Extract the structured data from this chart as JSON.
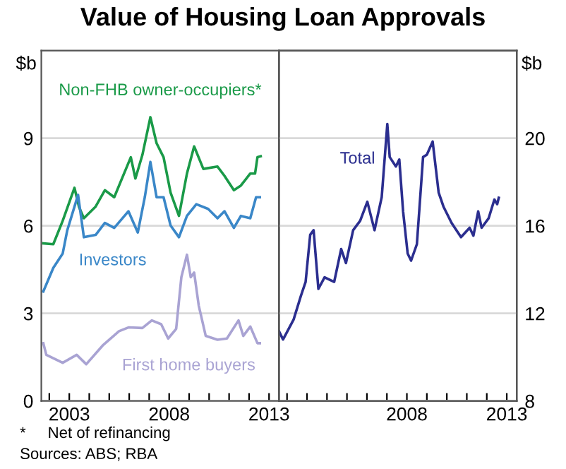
{
  "chart_data": [
    {
      "type": "line",
      "title": "Value of Housing Loan Approvals",
      "ylabel": "$b",
      "xlim": [
        2001.6,
        2013.5
      ],
      "xticks": [
        {
          "value": 2002,
          "label": null
        },
        2003,
        {
          "value": 2004,
          "label": null
        },
        {
          "value": 2005,
          "label": null
        },
        {
          "value": 2006,
          "label": null
        },
        {
          "value": 2007,
          "label": null
        },
        2008,
        {
          "value": 2009,
          "label": null
        },
        {
          "value": 2010,
          "label": null
        },
        {
          "value": 2011,
          "label": null
        },
        {
          "value": 2012,
          "label": null
        },
        2013
      ],
      "ylim": [
        0,
        12
      ],
      "yticks": [
        0,
        3,
        6,
        9
      ],
      "grid": "y",
      "legend": false,
      "annotations": [
        "*     Net of refinancing",
        "Sources: ABS; RBA"
      ],
      "series": [
        {
          "name": "Non-FHB owner-occupiers*",
          "color": "#1a9a48",
          "x": [
            2001.7,
            2002.2,
            2002.67,
            2003.26,
            2003.49,
            2003.73,
            2004.32,
            2004.78,
            2005.25,
            2006.08,
            2006.31,
            2006.66,
            2007.06,
            2007.37,
            2007.72,
            2008.07,
            2008.49,
            2008.89,
            2009.25,
            2009.71,
            2010.42,
            2010.77,
            2011.24,
            2011.59,
            2012.06,
            2012.3,
            2012.42,
            2012.58
          ],
          "values": [
            5.4,
            5.37,
            6.17,
            7.3,
            6.64,
            6.26,
            6.66,
            7.22,
            6.98,
            8.35,
            7.62,
            8.43,
            9.72,
            8.83,
            8.35,
            7.14,
            6.34,
            7.79,
            8.72,
            7.95,
            8.03,
            7.71,
            7.22,
            7.38,
            7.79,
            7.79,
            8.35,
            8.38
          ]
        },
        {
          "name": "Investors",
          "color": "#3a87c8",
          "x": [
            2001.7,
            2002.2,
            2002.67,
            2002.9,
            2003.44,
            2003.73,
            2004.32,
            2004.78,
            2005.25,
            2005.96,
            2006.43,
            2006.78,
            2007.06,
            2007.37,
            2007.72,
            2008.07,
            2008.49,
            2008.89,
            2009.36,
            2009.95,
            2010.42,
            2010.77,
            2011.24,
            2011.59,
            2012.06,
            2012.35,
            2012.54
          ],
          "values": [
            3.75,
            4.56,
            5.05,
            5.85,
            7.06,
            5.61,
            5.69,
            6.1,
            5.93,
            6.5,
            5.77,
            6.98,
            8.19,
            6.98,
            6.98,
            6.01,
            5.61,
            6.34,
            6.74,
            6.58,
            6.26,
            6.5,
            5.93,
            6.34,
            6.26,
            6.98,
            6.98
          ]
        },
        {
          "name": "First home buyers",
          "color": "#a9a3d3",
          "x": [
            2001.7,
            2001.85,
            2002.67,
            2003.37,
            2003.85,
            2004.67,
            2005.49,
            2005.96,
            2006.66,
            2007.13,
            2007.6,
            2007.95,
            2008.35,
            2008.61,
            2008.89,
            2009.08,
            2009.25,
            2009.48,
            2009.83,
            2010.42,
            2010.89,
            2011.47,
            2011.71,
            2012.06,
            2012.42,
            2012.54
          ],
          "values": [
            1.98,
            1.58,
            1.31,
            1.58,
            1.26,
            1.9,
            2.39,
            2.52,
            2.5,
            2.76,
            2.63,
            2.14,
            2.47,
            4.24,
            5.01,
            4.24,
            4.4,
            3.27,
            2.23,
            2.1,
            2.14,
            2.76,
            2.23,
            2.55,
            1.98,
            1.98
          ]
        }
      ]
    },
    {
      "type": "line",
      "y2label": "$b",
      "xlim": [
        2001.6,
        2013.5
      ],
      "xticks": [
        {
          "value": 2002,
          "label": null
        },
        {
          "value": 2003,
          "label": null
        },
        {
          "value": 2004,
          "label": null
        },
        {
          "value": 2005,
          "label": null
        },
        {
          "value": 2006,
          "label": null
        },
        {
          "value": 2007,
          "label": null
        },
        2008,
        {
          "value": 2009,
          "label": null
        },
        {
          "value": 2010,
          "label": null
        },
        {
          "value": 2011,
          "label": null
        },
        {
          "value": 2012,
          "label": null
        },
        2013
      ],
      "y2lim": [
        8,
        24
      ],
      "y2ticks": [
        8,
        12,
        16,
        20
      ],
      "grid": "y",
      "legend": false,
      "series": [
        {
          "name": "Total",
          "color": "#2b2e8f",
          "axis": "y2",
          "x": [
            2001.6,
            2001.8,
            2001.97,
            2002.33,
            2002.69,
            2002.93,
            2003.16,
            2003.33,
            2003.57,
            2003.88,
            2004.36,
            2004.71,
            2004.95,
            2005.31,
            2005.66,
            2006.02,
            2006.38,
            2006.74,
            2007.02,
            2007.14,
            2007.45,
            2007.62,
            2007.81,
            2008.04,
            2008.21,
            2008.5,
            2008.81,
            2009.0,
            2009.29,
            2009.59,
            2009.83,
            2010.24,
            2010.71,
            2011.14,
            2011.33,
            2011.57,
            2011.74,
            2012.09,
            2012.38,
            2012.52,
            2012.6
          ],
          "values": [
            11.18,
            10.81,
            11.1,
            11.72,
            12.79,
            13.44,
            15.59,
            15.8,
            13.12,
            13.65,
            13.44,
            14.94,
            14.3,
            15.8,
            16.23,
            17.1,
            15.8,
            17.31,
            20.65,
            19.14,
            18.71,
            19.03,
            16.66,
            14.73,
            14.41,
            15.16,
            19.14,
            19.25,
            19.85,
            17.52,
            16.88,
            16.13,
            15.48,
            15.91,
            15.55,
            16.66,
            15.91,
            16.34,
            17.2,
            16.99,
            17.28
          ]
        }
      ]
    }
  ]
}
